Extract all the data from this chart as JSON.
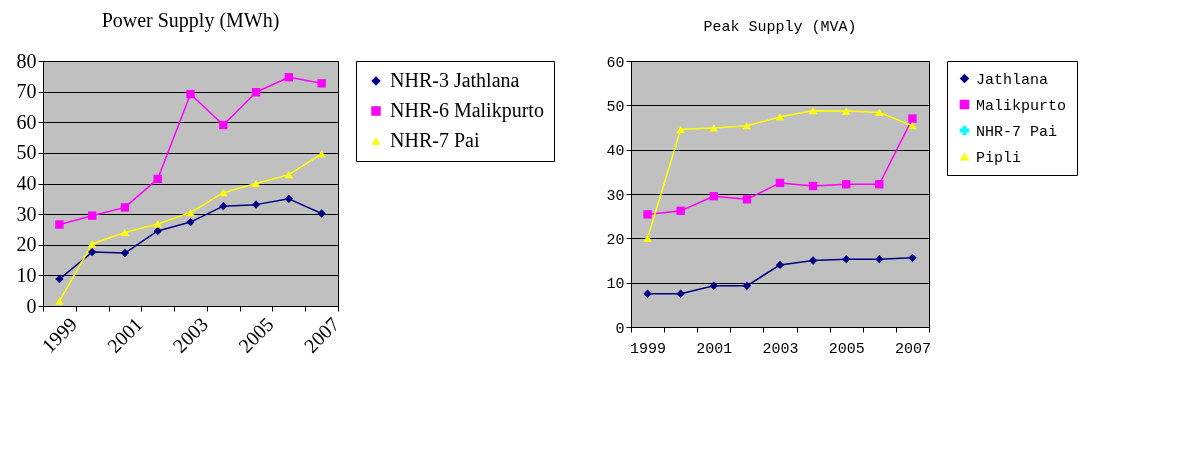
{
  "chart_data": [
    {
      "type": "line",
      "title": "Power Supply (MWh)",
      "categories": [
        "1999",
        null,
        "2001",
        null,
        "2003",
        null,
        "2005",
        null,
        "2007"
      ],
      "ylim": [
        0,
        80
      ],
      "yticks": [
        0,
        10,
        20,
        30,
        40,
        50,
        60,
        70,
        80
      ],
      "grid": "y",
      "legend": "right",
      "series": [
        {
          "name": "NHR-3 Jathlana",
          "color": "#000080",
          "marker": "diamond",
          "values": [
            8.8,
            17.6,
            17.3,
            24.5,
            27.4,
            32.6,
            33.1,
            35,
            30.2
          ]
        },
        {
          "name": "NHR-6 Malikpurto",
          "color": "#ff00ff",
          "marker": "square",
          "values": [
            26.6,
            29.5,
            32.2,
            41.5,
            69.2,
            59.1,
            69.8,
            74.7,
            72.7
          ]
        },
        {
          "name": "NHR-7  Pai",
          "color": "#ffff00",
          "marker": "triangle",
          "values": [
            1.6,
            20.3,
            24,
            26.8,
            30.5,
            37,
            40,
            42.9,
            49.7
          ]
        }
      ]
    },
    {
      "type": "line",
      "title": "Peak Supply  (MVA)",
      "categories": [
        "1999",
        null,
        "2001",
        null,
        "2003",
        null,
        "2005",
        null,
        "2007"
      ],
      "ylim": [
        0,
        60
      ],
      "yticks": [
        0,
        10,
        20,
        30,
        40,
        50,
        60
      ],
      "grid": "y",
      "legend": "right",
      "series": [
        {
          "name": "Jathlana",
          "color": "#000080",
          "marker": "diamond",
          "values": [
            7.5,
            7.5,
            9.3,
            9.3,
            14,
            15,
            15.3,
            15.3,
            15.6
          ]
        },
        {
          "name": "Malikpurto",
          "color": "#ff00ff",
          "marker": "square",
          "values": [
            25.4,
            26.2,
            29.5,
            28.8,
            32.5,
            31.8,
            32.2,
            32.2,
            47
          ]
        },
        {
          "name": "NHR-7  Pai",
          "color": "#00ffff",
          "marker": "cross",
          "values": [
            null,
            null,
            null,
            null,
            null,
            null,
            null,
            null,
            null
          ]
        },
        {
          "name": "Pipli",
          "color": "#ffff00",
          "marker": "triangle",
          "values": [
            20,
            44.6,
            44.9,
            45.4,
            47.4,
            48.8,
            48.7,
            48.4,
            45.4
          ]
        }
      ]
    }
  ]
}
